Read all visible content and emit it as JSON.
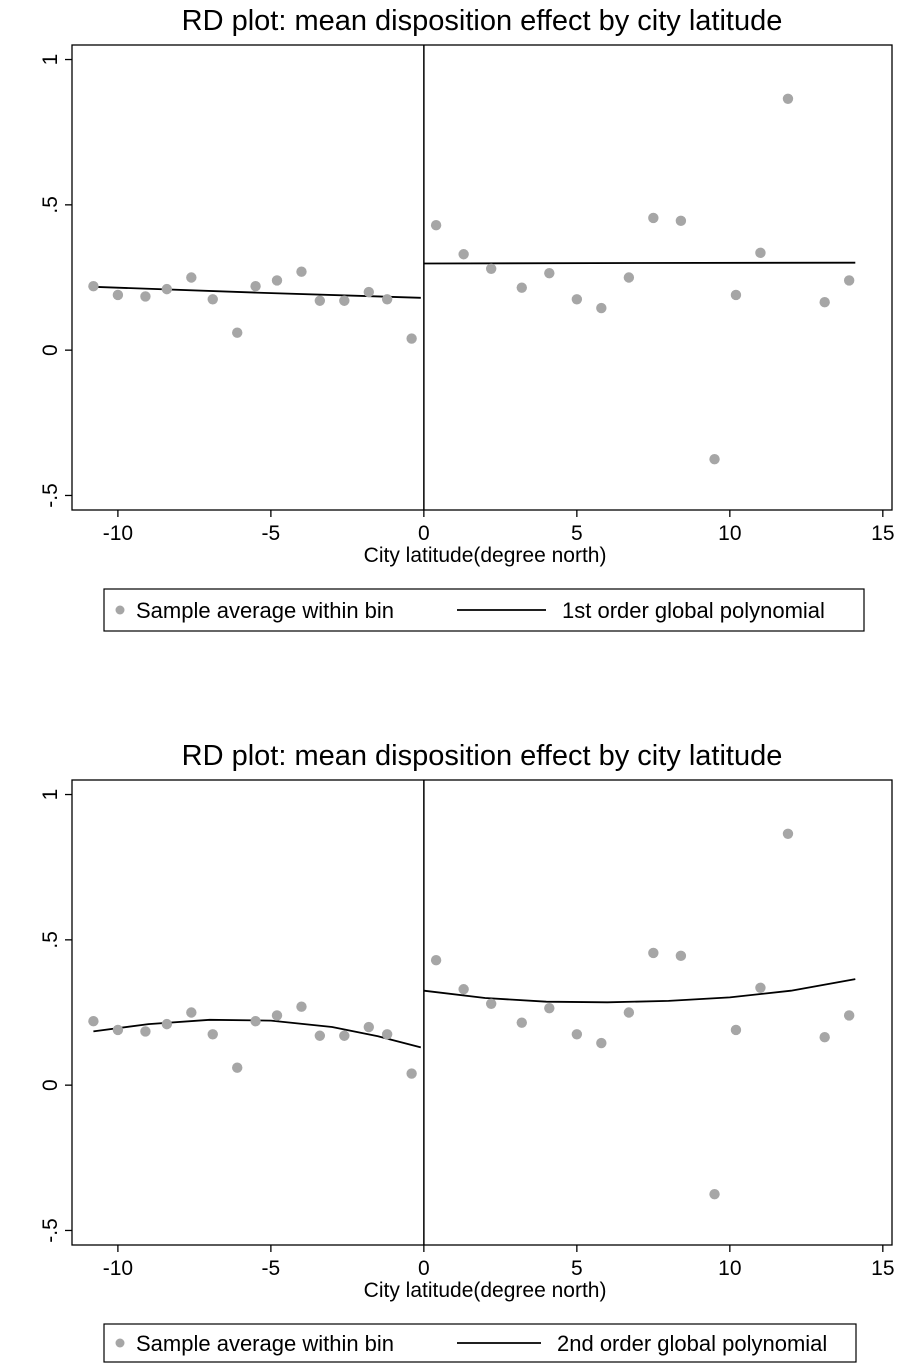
{
  "chart_data": [
    {
      "type": "scatter",
      "title": "RD plot: mean disposition effect by city latitude",
      "xlabel": "City latitude(degree north)",
      "ylabel": "",
      "xlim": [
        -11.5,
        15.3
      ],
      "ylim": [
        -0.55,
        1.05
      ],
      "xticks": [
        -10,
        -5,
        0,
        5,
        10,
        15
      ],
      "xtick_labels": [
        "-10",
        "-5",
        "0",
        "5",
        "10",
        "15"
      ],
      "yticks": [
        -0.5,
        0,
        0.5,
        1
      ],
      "ytick_labels": [
        "-.5",
        "0",
        ".5",
        "1"
      ],
      "cutoff": 0,
      "grid": false,
      "legend_position": "bottom",
      "marker_color": "#a6a6a6",
      "line_color": "#000000",
      "series": [
        {
          "name": "Sample average within bin",
          "kind": "points",
          "x": [
            -10.8,
            -10.0,
            -9.1,
            -8.4,
            -7.6,
            -6.9,
            -6.1,
            -5.5,
            -4.8,
            -4.0,
            -3.4,
            -2.6,
            -1.8,
            -1.2,
            -0.4,
            0.4,
            1.3,
            2.2,
            3.2,
            4.1,
            5.0,
            5.8,
            6.7,
            7.5,
            8.4,
            9.5,
            10.2,
            11.0,
            11.9,
            13.1,
            13.9
          ],
          "y": [
            0.22,
            0.19,
            0.185,
            0.21,
            0.25,
            0.175,
            0.06,
            0.22,
            0.24,
            0.27,
            0.17,
            0.17,
            0.2,
            0.175,
            0.04,
            0.43,
            0.33,
            0.28,
            0.215,
            0.265,
            0.175,
            0.145,
            0.25,
            0.455,
            0.445,
            -0.375,
            0.19,
            0.335,
            0.865,
            0.165,
            0.24
          ]
        },
        {
          "name": "1st order global polynomial",
          "kind": "fit",
          "segments": [
            {
              "x": [
                -10.8,
                -5.5,
                -0.1
              ],
              "y": [
                0.218,
                0.198,
                0.18
              ]
            },
            {
              "x": [
                0.0,
                7.0,
                14.1
              ],
              "y": [
                0.298,
                0.3,
                0.301
              ]
            }
          ]
        }
      ]
    },
    {
      "type": "scatter",
      "title": "RD plot: mean disposition effect by city latitude",
      "xlabel": "City latitude(degree north)",
      "ylabel": "",
      "xlim": [
        -11.5,
        15.3
      ],
      "ylim": [
        -0.55,
        1.05
      ],
      "xticks": [
        -10,
        -5,
        0,
        5,
        10,
        15
      ],
      "xtick_labels": [
        "-10",
        "-5",
        "0",
        "5",
        "10",
        "15"
      ],
      "yticks": [
        -0.5,
        0,
        0.5,
        1
      ],
      "ytick_labels": [
        "-.5",
        "0",
        ".5",
        "1"
      ],
      "cutoff": 0,
      "grid": false,
      "legend_position": "bottom",
      "marker_color": "#a6a6a6",
      "line_color": "#000000",
      "series": [
        {
          "name": "Sample average within bin",
          "kind": "points",
          "x": [
            -10.8,
            -10.0,
            -9.1,
            -8.4,
            -7.6,
            -6.9,
            -6.1,
            -5.5,
            -4.8,
            -4.0,
            -3.4,
            -2.6,
            -1.8,
            -1.2,
            -0.4,
            0.4,
            1.3,
            2.2,
            3.2,
            4.1,
            5.0,
            5.8,
            6.7,
            7.5,
            8.4,
            9.5,
            10.2,
            11.0,
            11.9,
            13.1,
            13.9
          ],
          "y": [
            0.22,
            0.19,
            0.185,
            0.21,
            0.25,
            0.175,
            0.06,
            0.22,
            0.24,
            0.27,
            0.17,
            0.17,
            0.2,
            0.175,
            0.04,
            0.43,
            0.33,
            0.28,
            0.215,
            0.265,
            0.175,
            0.145,
            0.25,
            0.455,
            0.445,
            -0.375,
            0.19,
            0.335,
            0.865,
            0.165,
            0.24
          ]
        },
        {
          "name": "2nd order global polynomial",
          "kind": "fit",
          "segments": [
            {
              "x": [
                -10.8,
                -9.0,
                -7.0,
                -5.0,
                -3.0,
                -1.5,
                -0.1
              ],
              "y": [
                0.185,
                0.21,
                0.225,
                0.222,
                0.2,
                0.168,
                0.13
              ]
            },
            {
              "x": [
                0.0,
                2.0,
                4.0,
                6.0,
                8.0,
                10.0,
                12.0,
                14.1
              ],
              "y": [
                0.325,
                0.3,
                0.287,
                0.285,
                0.29,
                0.302,
                0.325,
                0.365
              ]
            }
          ]
        }
      ]
    }
  ]
}
